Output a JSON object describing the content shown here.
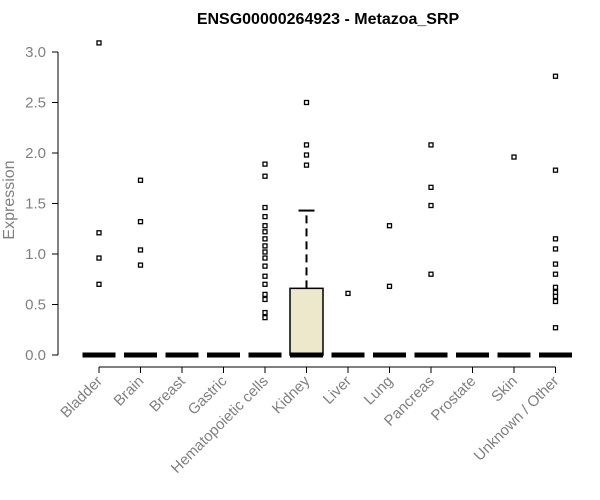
{
  "chart_data": {
    "type": "box",
    "title": "ENSG00000264923 - Metazoa_SRP",
    "xlabel": "",
    "ylabel": "Expression",
    "ylim": [
      0,
      3.1
    ],
    "yticks": [
      0.0,
      0.5,
      1.0,
      1.5,
      2.0,
      2.5,
      3.0
    ],
    "ytick_labels": [
      "0.0",
      "0.5",
      "1.0",
      "1.5",
      "2.0",
      "2.5",
      "3.0"
    ],
    "grid": false,
    "box_fill": "#ede7cb",
    "categories": [
      "Bladder",
      "Brain",
      "Breast",
      "Gastric",
      "Hematopoietic cells",
      "Kidney",
      "Liver",
      "Lung",
      "Pancreas",
      "Prostate",
      "Skin",
      "Unknown / Other"
    ],
    "boxes": [
      {
        "category": "Bladder",
        "q1": 0,
        "median": 0,
        "q3": 0,
        "whisker_low": 0,
        "whisker_high": 0,
        "outliers": [
          3.09,
          1.21,
          0.96,
          0.7
        ]
      },
      {
        "category": "Brain",
        "q1": 0,
        "median": 0,
        "q3": 0,
        "whisker_low": 0,
        "whisker_high": 0,
        "outliers": [
          1.73,
          1.32,
          1.04,
          0.89
        ]
      },
      {
        "category": "Breast",
        "q1": 0,
        "median": 0,
        "q3": 0,
        "whisker_low": 0,
        "whisker_high": 0,
        "outliers": []
      },
      {
        "category": "Gastric",
        "q1": 0,
        "median": 0,
        "q3": 0,
        "whisker_low": 0,
        "whisker_high": 0,
        "outliers": []
      },
      {
        "category": "Hematopoietic cells",
        "q1": 0,
        "median": 0,
        "q3": 0,
        "whisker_low": 0,
        "whisker_high": 0,
        "outliers": [
          1.89,
          1.77,
          1.46,
          1.37,
          1.28,
          1.22,
          1.15,
          1.08,
          1.02,
          0.96,
          0.88,
          0.78,
          0.7,
          0.6,
          0.55,
          0.42,
          0.37
        ]
      },
      {
        "category": "Kidney",
        "q1": 0,
        "median": 0,
        "q3": 0.66,
        "whisker_low": 0,
        "whisker_high": 1.43,
        "outliers": [
          2.5,
          2.08,
          1.98,
          1.88
        ]
      },
      {
        "category": "Liver",
        "q1": 0,
        "median": 0,
        "q3": 0,
        "whisker_low": 0,
        "whisker_high": 0,
        "outliers": [
          0.61
        ]
      },
      {
        "category": "Lung",
        "q1": 0,
        "median": 0,
        "q3": 0,
        "whisker_low": 0,
        "whisker_high": 0,
        "outliers": [
          1.28,
          0.68
        ]
      },
      {
        "category": "Pancreas",
        "q1": 0,
        "median": 0,
        "q3": 0,
        "whisker_low": 0,
        "whisker_high": 0,
        "outliers": [
          2.08,
          1.66,
          1.48,
          0.8
        ]
      },
      {
        "category": "Prostate",
        "q1": 0,
        "median": 0,
        "q3": 0,
        "whisker_low": 0,
        "whisker_high": 0,
        "outliers": []
      },
      {
        "category": "Skin",
        "q1": 0,
        "median": 0,
        "q3": 0,
        "whisker_low": 0,
        "whisker_high": 0,
        "outliers": [
          1.96
        ]
      },
      {
        "category": "Unknown / Other",
        "q1": 0,
        "median": 0,
        "q3": 0,
        "whisker_low": 0,
        "whisker_high": 0,
        "outliers": [
          2.76,
          1.83,
          1.15,
          1.05,
          0.9,
          0.8,
          0.67,
          0.62,
          0.58,
          0.53,
          0.27
        ]
      }
    ]
  }
}
